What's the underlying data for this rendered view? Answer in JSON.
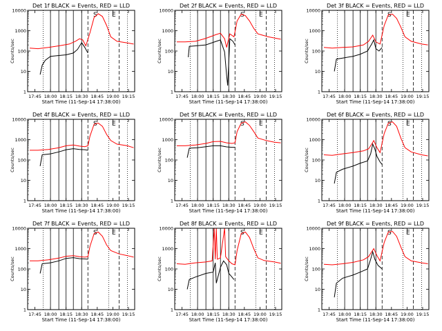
{
  "chart_data": {
    "type": "line",
    "layout": "3x3 grid of panels",
    "shared": {
      "ylabel": "Counts/sec",
      "xlabel": "Start Time (11-Sep-14 17:38:00)",
      "x_ticks": [
        "17:45",
        "18:00",
        "18:15",
        "18:30",
        "18:45",
        "19:00",
        "19:15"
      ],
      "x_tick_minutes": [
        7,
        22,
        37,
        52,
        67,
        82,
        97
      ],
      "xlim_minutes": [
        0,
        103
      ],
      "yscale": "log",
      "ylim": [
        1,
        10000
      ],
      "y_ticks": [
        "1",
        "10",
        "100",
        "1000",
        "10000"
      ],
      "y_tick_values": [
        1,
        10,
        100,
        1000,
        10000
      ],
      "series_colors": {
        "events": "#000000",
        "lld": "#ff0000"
      },
      "dotted_line_minutes": [
        15,
        78,
        96
      ],
      "dashed_line_minutes": [
        58,
        88
      ],
      "markers": [
        {
          "text": "S",
          "minute": 65
        },
        {
          "text": "E",
          "minute": 83
        }
      ],
      "solid_line_minutes": [
        22,
        30,
        37,
        44,
        52
      ]
    },
    "panels": [
      {
        "title": "Det 1f BLACK = Events, RED = LLD",
        "events": [
          [
            12,
            7
          ],
          [
            14,
            20
          ],
          [
            17,
            35
          ],
          [
            22,
            55
          ],
          [
            30,
            60
          ],
          [
            37,
            65
          ],
          [
            44,
            80
          ],
          [
            48,
            120
          ],
          [
            52,
            260
          ],
          [
            55,
            150
          ],
          [
            58,
            80
          ]
        ],
        "lld": [
          [
            2,
            140
          ],
          [
            10,
            130
          ],
          [
            20,
            150
          ],
          [
            30,
            180
          ],
          [
            40,
            220
          ],
          [
            46,
            300
          ],
          [
            50,
            400
          ],
          [
            53,
            350
          ],
          [
            56,
            180
          ],
          [
            60,
            800
          ],
          [
            64,
            4500
          ],
          [
            68,
            6800
          ],
          [
            72,
            5000
          ],
          [
            76,
            1800
          ],
          [
            80,
            500
          ],
          [
            86,
            300
          ],
          [
            96,
            250
          ],
          [
            102,
            220
          ]
        ]
      },
      {
        "title": "Det 2f BLACK = Events, RED = LLD",
        "events": [
          [
            13,
            50
          ],
          [
            14,
            170
          ],
          [
            20,
            180
          ],
          [
            30,
            200
          ],
          [
            40,
            300
          ],
          [
            44,
            350
          ],
          [
            48,
            90
          ],
          [
            50,
            6
          ],
          [
            51,
            2
          ],
          [
            53,
            400
          ],
          [
            56,
            300
          ],
          [
            58,
            200
          ]
        ],
        "lld": [
          [
            2,
            280
          ],
          [
            10,
            280
          ],
          [
            20,
            300
          ],
          [
            30,
            420
          ],
          [
            40,
            650
          ],
          [
            44,
            750
          ],
          [
            48,
            400
          ],
          [
            50,
            150
          ],
          [
            53,
            700
          ],
          [
            57,
            500
          ],
          [
            60,
            3000
          ],
          [
            64,
            6500
          ],
          [
            68,
            5500
          ],
          [
            72,
            3000
          ],
          [
            76,
            1300
          ],
          [
            80,
            700
          ],
          [
            90,
            500
          ],
          [
            102,
            380
          ]
        ]
      },
      {
        "title": "Det 3f BLACK = Events, RED = LLD",
        "events": [
          [
            12,
            10
          ],
          [
            14,
            40
          ],
          [
            20,
            45
          ],
          [
            30,
            55
          ],
          [
            37,
            70
          ],
          [
            44,
            100
          ],
          [
            48,
            220
          ],
          [
            50,
            350
          ],
          [
            52,
            130
          ],
          [
            55,
            100
          ],
          [
            58,
            150
          ]
        ],
        "lld": [
          [
            2,
            150
          ],
          [
            10,
            140
          ],
          [
            20,
            150
          ],
          [
            30,
            160
          ],
          [
            40,
            200
          ],
          [
            45,
            300
          ],
          [
            49,
            600
          ],
          [
            52,
            280
          ],
          [
            56,
            220
          ],
          [
            60,
            1800
          ],
          [
            64,
            6000
          ],
          [
            68,
            6500
          ],
          [
            72,
            4000
          ],
          [
            76,
            1500
          ],
          [
            80,
            500
          ],
          [
            86,
            300
          ],
          [
            96,
            220
          ],
          [
            102,
            200
          ]
        ]
      },
      {
        "title": "Det 4f BLACK = Events, RED = LLD",
        "events": [
          [
            12,
            50
          ],
          [
            14,
            180
          ],
          [
            22,
            200
          ],
          [
            30,
            250
          ],
          [
            37,
            320
          ],
          [
            44,
            360
          ],
          [
            50,
            330
          ],
          [
            55,
            320
          ],
          [
            58,
            300
          ]
        ],
        "lld": [
          [
            2,
            300
          ],
          [
            10,
            300
          ],
          [
            20,
            330
          ],
          [
            30,
            400
          ],
          [
            37,
            500
          ],
          [
            44,
            550
          ],
          [
            50,
            480
          ],
          [
            55,
            450
          ],
          [
            58,
            500
          ],
          [
            60,
            1500
          ],
          [
            64,
            5800
          ],
          [
            68,
            6500
          ],
          [
            72,
            4500
          ],
          [
            76,
            1800
          ],
          [
            80,
            900
          ],
          [
            86,
            600
          ],
          [
            96,
            500
          ],
          [
            102,
            400
          ]
        ]
      },
      {
        "title": "Det 5f BLACK = Events, RED = LLD",
        "events": [
          [
            12,
            130
          ],
          [
            14,
            380
          ],
          [
            22,
            400
          ],
          [
            30,
            450
          ],
          [
            37,
            500
          ],
          [
            44,
            500
          ],
          [
            50,
            440
          ],
          [
            55,
            420
          ],
          [
            58,
            420
          ]
        ],
        "lld": [
          [
            2,
            500
          ],
          [
            10,
            500
          ],
          [
            20,
            550
          ],
          [
            30,
            650
          ],
          [
            37,
            800
          ],
          [
            44,
            820
          ],
          [
            50,
            700
          ],
          [
            55,
            650
          ],
          [
            58,
            700
          ],
          [
            60,
            2500
          ],
          [
            64,
            6500
          ],
          [
            68,
            7500
          ],
          [
            72,
            5000
          ],
          [
            76,
            2500
          ],
          [
            80,
            1200
          ],
          [
            88,
            900
          ],
          [
            96,
            750
          ],
          [
            102,
            700
          ]
        ]
      },
      {
        "title": "Det 6f BLACK = Events, RED = LLD",
        "events": [
          [
            12,
            7
          ],
          [
            14,
            25
          ],
          [
            20,
            35
          ],
          [
            30,
            50
          ],
          [
            37,
            70
          ],
          [
            44,
            90
          ],
          [
            47,
            200
          ],
          [
            49,
            600
          ],
          [
            51,
            350
          ],
          [
            53,
            150
          ],
          [
            56,
            80
          ],
          [
            58,
            60
          ]
        ],
        "lld": [
          [
            2,
            180
          ],
          [
            10,
            170
          ],
          [
            20,
            200
          ],
          [
            30,
            230
          ],
          [
            40,
            280
          ],
          [
            45,
            350
          ],
          [
            48,
            600
          ],
          [
            50,
            900
          ],
          [
            53,
            400
          ],
          [
            56,
            230
          ],
          [
            60,
            2000
          ],
          [
            64,
            6500
          ],
          [
            68,
            7500
          ],
          [
            72,
            4500
          ],
          [
            76,
            1200
          ],
          [
            80,
            400
          ],
          [
            86,
            250
          ],
          [
            96,
            180
          ],
          [
            102,
            160
          ]
        ]
      },
      {
        "title": "Det 7f BLACK = Events, RED = LLD",
        "events": [
          [
            12,
            60
          ],
          [
            14,
            180
          ],
          [
            22,
            200
          ],
          [
            30,
            250
          ],
          [
            37,
            330
          ],
          [
            44,
            360
          ],
          [
            50,
            320
          ],
          [
            55,
            310
          ],
          [
            58,
            300
          ]
        ],
        "lld": [
          [
            2,
            250
          ],
          [
            10,
            250
          ],
          [
            20,
            280
          ],
          [
            30,
            340
          ],
          [
            37,
            420
          ],
          [
            44,
            450
          ],
          [
            50,
            400
          ],
          [
            55,
            380
          ],
          [
            58,
            400
          ],
          [
            60,
            1300
          ],
          [
            64,
            5500
          ],
          [
            68,
            6500
          ],
          [
            72,
            4000
          ],
          [
            76,
            1500
          ],
          [
            80,
            800
          ],
          [
            88,
            550
          ],
          [
            96,
            450
          ],
          [
            102,
            380
          ]
        ]
      },
      {
        "title": "Det 8f BLACK = Events, RED = LLD",
        "events": [
          [
            12,
            10
          ],
          [
            14,
            30
          ],
          [
            20,
            40
          ],
          [
            30,
            60
          ],
          [
            37,
            70
          ],
          [
            39,
            200
          ],
          [
            40,
            20
          ],
          [
            44,
            120
          ],
          [
            47,
            250
          ],
          [
            50,
            160
          ],
          [
            52,
            60
          ],
          [
            55,
            40
          ],
          [
            57,
            30
          ]
        ],
        "lld": [
          [
            2,
            180
          ],
          [
            10,
            170
          ],
          [
            20,
            200
          ],
          [
            30,
            220
          ],
          [
            36,
            250
          ],
          [
            38,
            10000
          ],
          [
            39,
            300
          ],
          [
            40,
            10000
          ],
          [
            41,
            300
          ],
          [
            44,
            350
          ],
          [
            48,
            10000
          ],
          [
            49,
            400
          ],
          [
            52,
            250
          ],
          [
            55,
            180
          ],
          [
            58,
            160
          ],
          [
            60,
            800
          ],
          [
            64,
            5500
          ],
          [
            68,
            6500
          ],
          [
            72,
            3500
          ],
          [
            76,
            1000
          ],
          [
            80,
            350
          ],
          [
            86,
            260
          ],
          [
            96,
            220
          ],
          [
            102,
            190
          ]
        ]
      },
      {
        "title": "Det 9f BLACK = Events, RED = LLD",
        "events": [
          [
            12,
            4
          ],
          [
            14,
            20
          ],
          [
            20,
            35
          ],
          [
            30,
            50
          ],
          [
            37,
            70
          ],
          [
            44,
            100
          ],
          [
            47,
            300
          ],
          [
            49,
            700
          ],
          [
            51,
            300
          ],
          [
            54,
            150
          ],
          [
            58,
            100
          ]
        ],
        "lld": [
          [
            2,
            170
          ],
          [
            10,
            160
          ],
          [
            20,
            180
          ],
          [
            30,
            210
          ],
          [
            40,
            280
          ],
          [
            45,
            400
          ],
          [
            48,
            700
          ],
          [
            50,
            1000
          ],
          [
            53,
            450
          ],
          [
            56,
            250
          ],
          [
            60,
            2000
          ],
          [
            64,
            6500
          ],
          [
            68,
            7000
          ],
          [
            72,
            4000
          ],
          [
            76,
            1200
          ],
          [
            80,
            400
          ],
          [
            86,
            250
          ],
          [
            96,
            200
          ],
          [
            102,
            180
          ]
        ]
      }
    ]
  }
}
